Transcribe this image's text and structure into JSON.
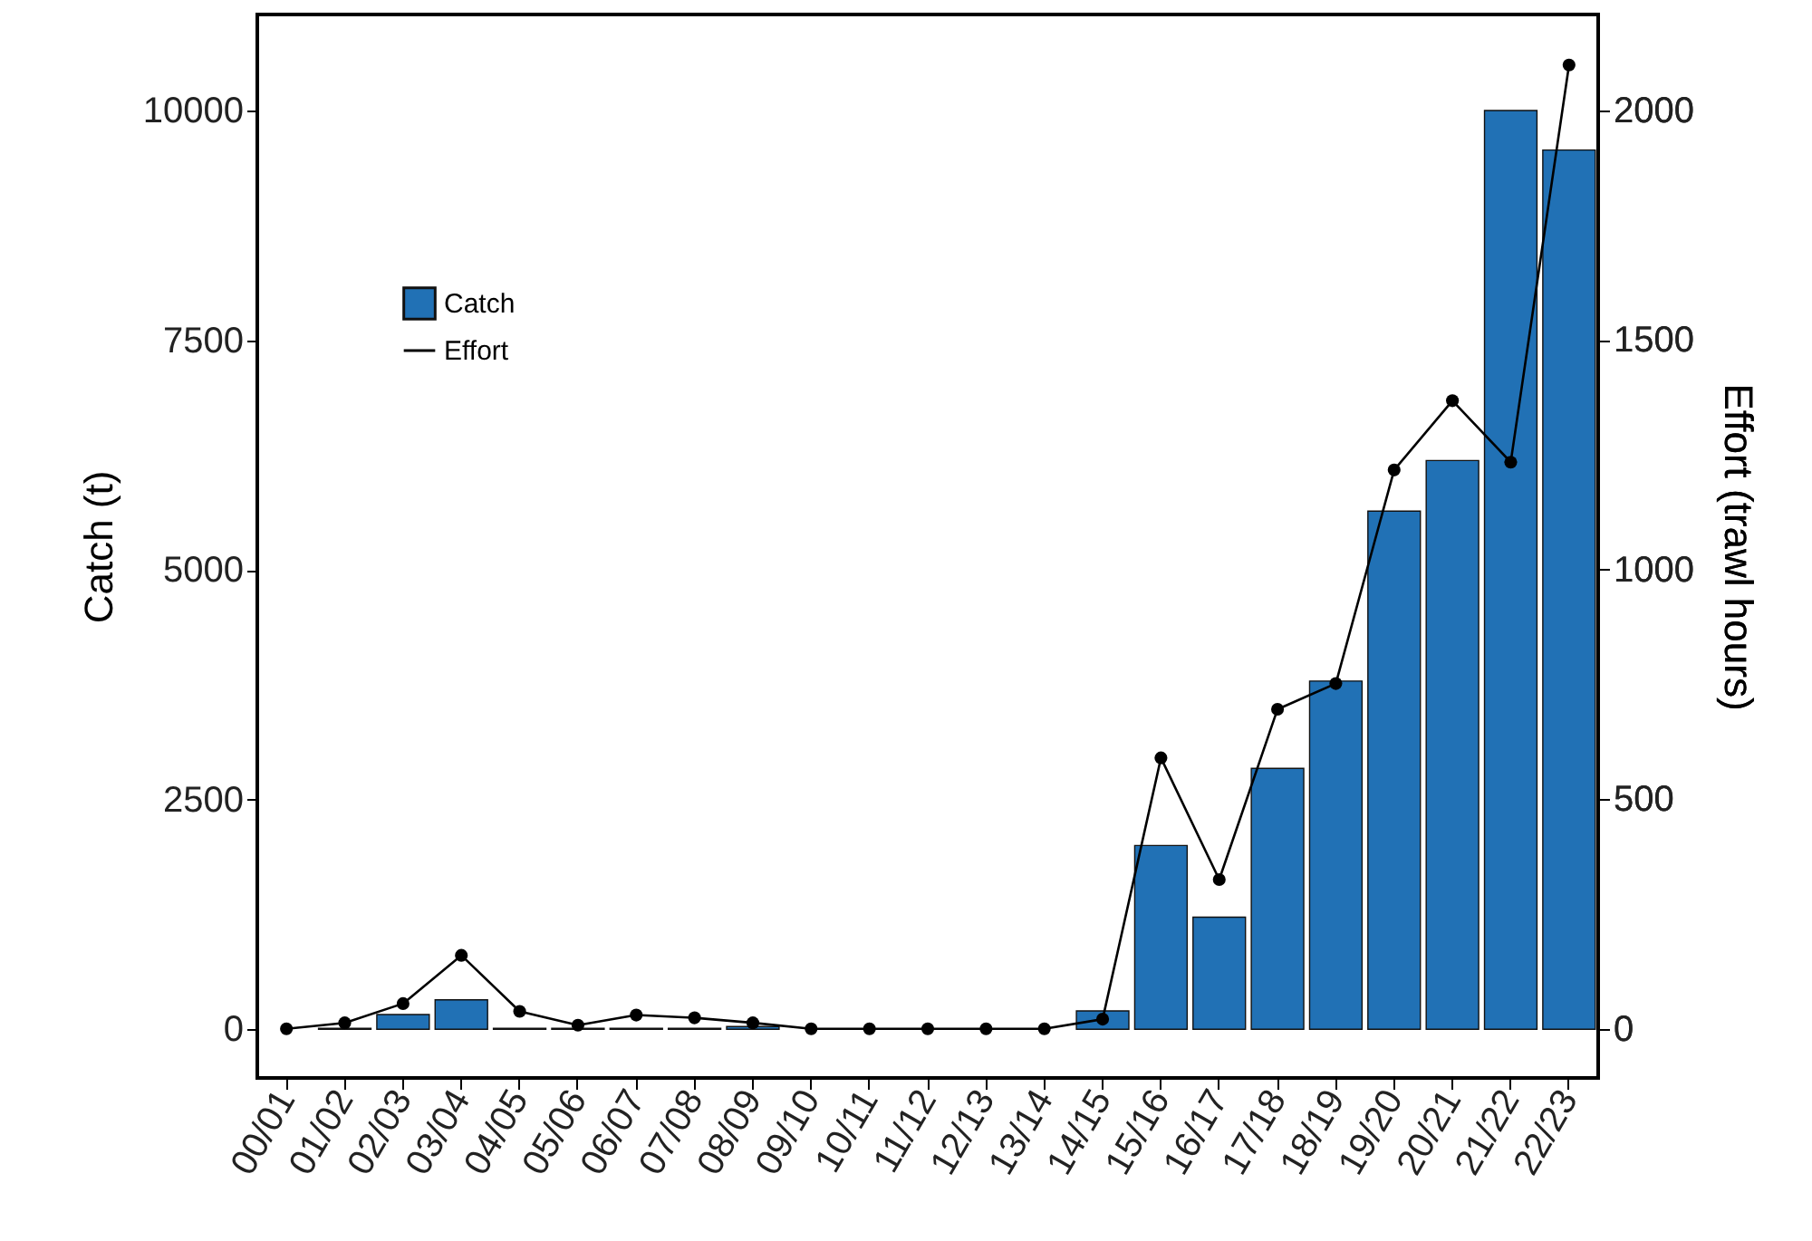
{
  "chart_data": {
    "type": "bar",
    "ylabel": "Catch (t)",
    "y2label": "Effort (trawl hours)",
    "categories": [
      "00/01",
      "01/02",
      "02/03",
      "03/04",
      "04/05",
      "05/06",
      "06/07",
      "07/08",
      "08/09",
      "09/10",
      "10/11",
      "11/12",
      "12/13",
      "13/14",
      "14/15",
      "15/16",
      "16/17",
      "17/18",
      "18/19",
      "19/20",
      "20/21",
      "21/22",
      "22/23"
    ],
    "series": [
      {
        "name": "Catch",
        "color": "#2171b5",
        "values": [
          0,
          10,
          160,
          320,
          10,
          10,
          10,
          10,
          30,
          0,
          0,
          0,
          0,
          0,
          200,
          2000,
          1220,
          2840,
          3790,
          5640,
          6190,
          10000,
          9570
        ]
      },
      {
        "name": "Effort",
        "type": "line",
        "axis": "y2",
        "color": "#000000",
        "values": [
          0,
          13,
          55,
          160,
          38,
          8,
          30,
          24,
          13,
          0,
          0,
          0,
          0,
          0,
          21,
          590,
          325,
          696,
          752,
          1217,
          1368,
          1234,
          2099
        ]
      }
    ],
    "ylim": [
      -530,
      11045
    ],
    "yticks": [
      0,
      2500,
      5000,
      7500,
      10000
    ],
    "y2lim": [
      -107,
      2209
    ],
    "y2ticks": [
      0,
      500,
      1000,
      1500,
      2000
    ],
    "grid": false,
    "legend": "top left",
    "marker": "circle",
    "line_style": "solid"
  }
}
